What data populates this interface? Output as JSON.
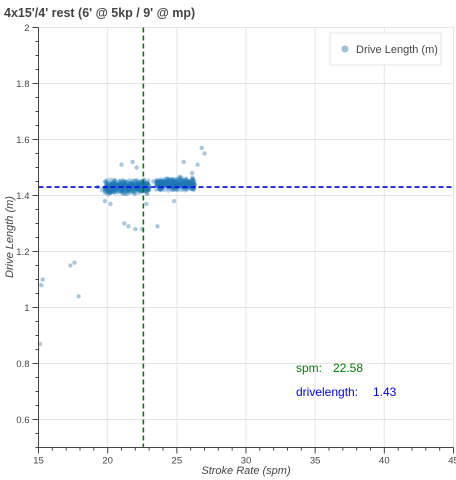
{
  "chart_data": {
    "type": "scatter",
    "title": "4x15'/4' rest (6' @ 5kp / 9' @ mp)",
    "xlabel": "Stroke Rate (spm)",
    "ylabel": "Drive Length (m)",
    "xlim": [
      15,
      45
    ],
    "ylim": [
      0.5,
      2.0
    ],
    "xticks": [
      "15",
      "20",
      "25",
      "30",
      "35",
      "40",
      "45"
    ],
    "yticks": [
      "0.6",
      "0.8",
      "1",
      "1.2",
      "1.4",
      "1.6",
      "1.8",
      "2"
    ],
    "grid": true,
    "legend_position": "top-right",
    "series": [
      {
        "name": "Drive Length (m)",
        "color": "#1f77b4",
        "clusters": [
          {
            "x_range": [
              19.8,
              23.0
            ],
            "y_range": [
              1.4,
              1.46
            ],
            "count": 420
          },
          {
            "x_range": [
              23.5,
              26.3
            ],
            "y_range": [
              1.41,
              1.47
            ],
            "count": 330
          }
        ],
        "points": [
          {
            "x": 15.1,
            "y": 0.87
          },
          {
            "x": 15.2,
            "y": 1.08
          },
          {
            "x": 15.3,
            "y": 1.1
          },
          {
            "x": 17.3,
            "y": 1.15
          },
          {
            "x": 17.6,
            "y": 1.16
          },
          {
            "x": 17.9,
            "y": 1.04
          },
          {
            "x": 19.3,
            "y": 1.43
          },
          {
            "x": 19.6,
            "y": 1.42
          },
          {
            "x": 19.8,
            "y": 1.38
          },
          {
            "x": 20.2,
            "y": 1.37
          },
          {
            "x": 21.2,
            "y": 1.3
          },
          {
            "x": 21.5,
            "y": 1.29
          },
          {
            "x": 22.0,
            "y": 1.28
          },
          {
            "x": 22.5,
            "y": 1.28
          },
          {
            "x": 23.6,
            "y": 1.29
          },
          {
            "x": 22.8,
            "y": 1.37
          },
          {
            "x": 21.8,
            "y": 1.52
          },
          {
            "x": 22.1,
            "y": 1.5
          },
          {
            "x": 21.0,
            "y": 1.51
          },
          {
            "x": 25.5,
            "y": 1.52
          },
          {
            "x": 26.5,
            "y": 1.51
          },
          {
            "x": 26.8,
            "y": 1.57
          },
          {
            "x": 27.0,
            "y": 1.55
          },
          {
            "x": 26.1,
            "y": 1.48
          },
          {
            "x": 24.8,
            "y": 1.38
          },
          {
            "x": 23.3,
            "y": 1.45
          }
        ]
      }
    ],
    "reference_lines": [
      {
        "orientation": "vertical",
        "x": 22.58,
        "color": "#008000",
        "style": "dashed"
      },
      {
        "orientation": "horizontal",
        "y": 1.43,
        "color": "#0000ff",
        "style": "dashed"
      }
    ],
    "annotations": [
      {
        "label": "spm:",
        "value": "22.58",
        "color": "#008000"
      },
      {
        "label": "drivelength:",
        "value": "1.43",
        "color": "#0000ff"
      }
    ]
  }
}
